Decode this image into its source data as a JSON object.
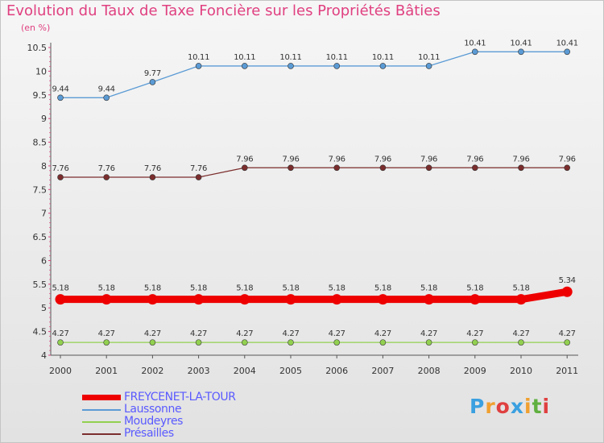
{
  "title": "Evolution du Taux de Taxe Foncière sur les Propriétés Bâties",
  "unit_label": "(en %)",
  "logo": {
    "letters": [
      "P",
      "r",
      "o",
      "x",
      "i",
      "t",
      "i"
    ],
    "colors": [
      "#3aa0e0",
      "#f0a030",
      "#e04040",
      "#3aa0e0",
      "#f0a030",
      "#60b040",
      "#e04040"
    ]
  },
  "colors": {
    "title": "#e04080",
    "legend_text": "#5a5aff",
    "axis": "#e04080"
  },
  "chart_data": {
    "type": "line",
    "title": "Evolution du Taux de Taxe Foncière sur les Propriétés Bâties",
    "ylabel": "(en %)",
    "xlabel": "",
    "ylim": [
      4,
      10.5
    ],
    "y_ticks": [
      "4",
      "4.5",
      "5",
      "5.5",
      "6",
      "6.5",
      "7",
      "7.5",
      "8",
      "8.5",
      "9",
      "9.5",
      "10",
      "10.5"
    ],
    "categories": [
      "2000",
      "2001",
      "2002",
      "2003",
      "2004",
      "2005",
      "2006",
      "2007",
      "2008",
      "2009",
      "2010",
      "2011"
    ],
    "series": [
      {
        "name": "FREYCENET-LA-TOUR",
        "color": "#ee0000",
        "values": [
          5.18,
          5.18,
          5.18,
          5.18,
          5.18,
          5.18,
          5.18,
          5.18,
          5.18,
          5.18,
          5.18,
          5.34
        ],
        "labels": [
          "5.18",
          "5.18",
          "5.18",
          "5.18",
          "5.18",
          "5.18",
          "5.18",
          "5.18",
          "5.18",
          "5.18",
          "5.18",
          "5.34"
        ]
      },
      {
        "name": "Laussonne",
        "color": "#5b9bd5",
        "values": [
          9.44,
          9.44,
          9.77,
          10.11,
          10.11,
          10.11,
          10.11,
          10.11,
          10.11,
          10.41,
          10.41,
          10.41
        ],
        "labels": [
          "9.44",
          "9.44",
          "9.77",
          "10.11",
          "10.11",
          "10.11",
          "10.11",
          "10.11",
          "10.11",
          "10.41",
          "10.41",
          "10.41"
        ]
      },
      {
        "name": "Moudeyres",
        "color": "#92d050",
        "values": [
          4.27,
          4.27,
          4.27,
          4.27,
          4.27,
          4.27,
          4.27,
          4.27,
          4.27,
          4.27,
          4.27,
          4.27
        ],
        "labels": [
          "4.27",
          "4.27",
          "4.27",
          "4.27",
          "4.27",
          "4.27",
          "4.27",
          "4.27",
          "4.27",
          "4.27",
          "4.27",
          "4.27"
        ]
      },
      {
        "name": "Présailles",
        "color": "#7b2d2d",
        "values": [
          7.76,
          7.76,
          7.76,
          7.76,
          7.96,
          7.96,
          7.96,
          7.96,
          7.96,
          7.96,
          7.96,
          7.96
        ],
        "labels": [
          "7.76",
          "7.76",
          "7.76",
          "7.76",
          "7.96",
          "7.96",
          "7.96",
          "7.96",
          "7.96",
          "7.96",
          "7.96",
          "7.96"
        ]
      }
    ],
    "legend": {
      "position": "bottom-left",
      "entries": [
        "FREYCENET-LA-TOUR",
        "Laussonne",
        "Moudeyres",
        "Présailles"
      ]
    }
  }
}
